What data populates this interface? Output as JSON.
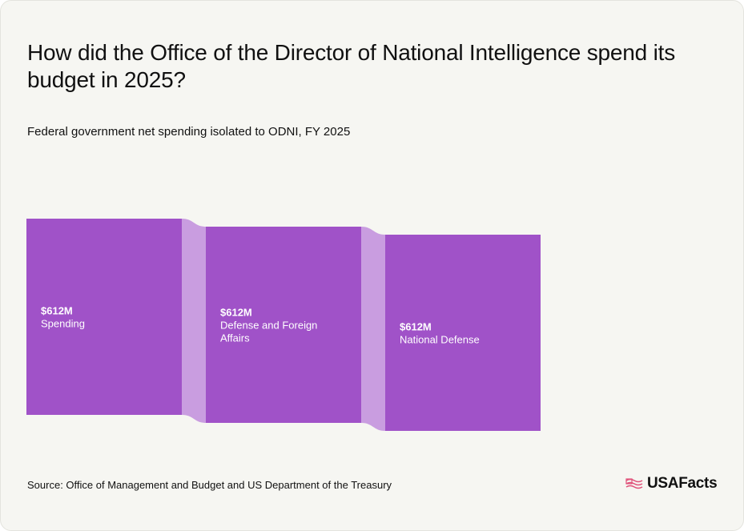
{
  "title": "How did the Office of the Director of National Intelligence spend its budget in 2025?",
  "subtitle": "Federal government net spending isolated to ODNI, FY 2025",
  "source": "Source: Office of Management and Budget and US Department of the Treasury",
  "brand": "USAFacts",
  "colors": {
    "node": "#a052c8",
    "link": "#c99de0",
    "background": "#f6f6f2",
    "logo_accent": "#e0527a"
  },
  "chart_data": {
    "type": "sankey",
    "unit": "USD",
    "nodes": [
      {
        "name": "Spending",
        "value_label": "$612M",
        "value": 612
      },
      {
        "name": "Defense and Foreign Affairs",
        "value_label": "$612M",
        "value": 612
      },
      {
        "name": "National Defense",
        "value_label": "$612M",
        "value": 612
      }
    ],
    "links": [
      {
        "source": "Spending",
        "target": "Defense and Foreign Affairs",
        "value": 612
      },
      {
        "source": "Defense and Foreign Affairs",
        "target": "National Defense",
        "value": 612
      }
    ]
  }
}
